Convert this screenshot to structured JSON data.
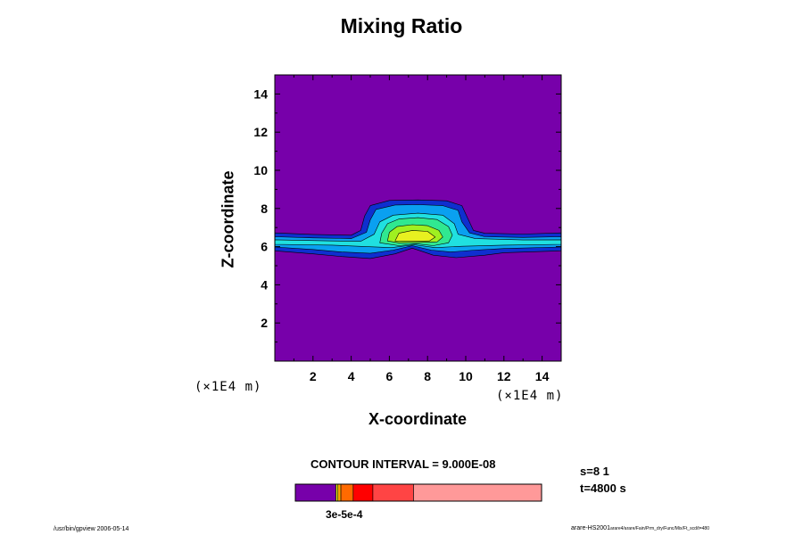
{
  "chart_data": {
    "type": "contour",
    "title": "Mixing Ratio",
    "xlabel": "X-coordinate",
    "ylabel": "Z-coordinate",
    "x_unit": "(×1E4 m)",
    "y_unit": "(×1E4 m)",
    "xlim": [
      0,
      15
    ],
    "ylim": [
      0,
      15
    ],
    "x_ticks": [
      2,
      4,
      6,
      8,
      10,
      12,
      14
    ],
    "y_ticks": [
      2,
      4,
      6,
      8,
      10,
      12,
      14
    ],
    "x_tick_labels": [
      "2",
      "4",
      "6",
      "8",
      "10",
      "12",
      "14"
    ],
    "y_tick_labels": [
      "2",
      "4",
      "6",
      "8",
      "10",
      "12",
      "14"
    ],
    "contour_interval": "CONTOUR INTERVAL = 9.000E-08",
    "background_color": "#7700aa",
    "levels": [
      {
        "color": "#0f2fcf",
        "regions": [
          [
            [
              0,
              6.72
            ],
            [
              2,
              6.64
            ],
            [
              4,
              6.6
            ],
            [
              4.5,
              6.85
            ],
            [
              4.7,
              7.6
            ],
            [
              5.0,
              8.15
            ],
            [
              6,
              8.42
            ],
            [
              7.5,
              8.45
            ],
            [
              9,
              8.4
            ],
            [
              9.8,
              8.15
            ],
            [
              10.1,
              7.5
            ],
            [
              10.4,
              6.85
            ],
            [
              11,
              6.7
            ],
            [
              13,
              6.66
            ],
            [
              15,
              6.72
            ],
            [
              15,
              5.78
            ],
            [
              12,
              5.68
            ],
            [
              11,
              5.55
            ],
            [
              9.5,
              5.42
            ],
            [
              8.3,
              5.55
            ],
            [
              7.2,
              5.92
            ],
            [
              6.3,
              5.62
            ],
            [
              5,
              5.38
            ],
            [
              3.5,
              5.48
            ],
            [
              2,
              5.62
            ],
            [
              0,
              5.78
            ]
          ]
        ]
      },
      {
        "color": "#0aa0f0",
        "regions": [
          [
            [
              0,
              6.52
            ],
            [
              2,
              6.46
            ],
            [
              4,
              6.42
            ],
            [
              4.8,
              6.75
            ],
            [
              5.0,
              7.4
            ],
            [
              5.3,
              7.95
            ],
            [
              6.3,
              8.18
            ],
            [
              7.5,
              8.2
            ],
            [
              8.8,
              8.15
            ],
            [
              9.6,
              7.9
            ],
            [
              9.8,
              7.3
            ],
            [
              10.2,
              6.72
            ],
            [
              11,
              6.52
            ],
            [
              13,
              6.48
            ],
            [
              15,
              6.52
            ],
            [
              15,
              5.98
            ],
            [
              12,
              5.9
            ],
            [
              10.5,
              5.82
            ],
            [
              9.2,
              5.72
            ],
            [
              8.2,
              5.82
            ],
            [
              7.2,
              6.05
            ],
            [
              6.2,
              5.82
            ],
            [
              5,
              5.65
            ],
            [
              3.5,
              5.72
            ],
            [
              2,
              5.85
            ],
            [
              0,
              5.98
            ]
          ]
        ]
      },
      {
        "color": "#20e0e0",
        "regions": [
          [
            [
              0,
              6.36
            ],
            [
              3,
              6.3
            ],
            [
              4.5,
              6.28
            ],
            [
              5.2,
              6.65
            ],
            [
              5.5,
              7.3
            ],
            [
              6.2,
              7.65
            ],
            [
              7.5,
              7.75
            ],
            [
              8.8,
              7.65
            ],
            [
              9.4,
              7.2
            ],
            [
              9.6,
              6.65
            ],
            [
              10.5,
              6.42
            ],
            [
              13,
              6.35
            ],
            [
              15,
              6.36
            ],
            [
              15,
              6.12
            ],
            [
              12,
              6.08
            ],
            [
              9.8,
              6.02
            ],
            [
              8.4,
              5.95
            ],
            [
              7.3,
              6.1
            ],
            [
              6.1,
              5.95
            ],
            [
              4.8,
              6.0
            ],
            [
              3,
              6.08
            ],
            [
              0,
              6.12
            ]
          ]
        ]
      },
      {
        "color": "#30e890",
        "regions": [
          [
            [
              5.5,
              6.2
            ],
            [
              5.6,
              6.7
            ],
            [
              5.9,
              7.2
            ],
            [
              6.5,
              7.45
            ],
            [
              7.5,
              7.52
            ],
            [
              8.5,
              7.42
            ],
            [
              9.1,
              7.05
            ],
            [
              9.3,
              6.6
            ],
            [
              9.1,
              6.2
            ],
            [
              8.3,
              6.05
            ],
            [
              7.4,
              6.15
            ],
            [
              6.5,
              6.05
            ]
          ]
        ]
      },
      {
        "color": "#a0f020",
        "regions": [
          [
            [
              5.9,
              6.3
            ],
            [
              6.0,
              6.75
            ],
            [
              6.4,
              7.05
            ],
            [
              7.2,
              7.15
            ],
            [
              8.0,
              7.1
            ],
            [
              8.6,
              6.85
            ],
            [
              8.8,
              6.5
            ],
            [
              8.5,
              6.25
            ],
            [
              7.5,
              6.22
            ],
            [
              6.5,
              6.2
            ]
          ]
        ]
      },
      {
        "color": "#e8f020",
        "regions": [
          [
            [
              6.3,
              6.3
            ],
            [
              6.5,
              6.7
            ],
            [
              7.2,
              6.85
            ],
            [
              8.0,
              6.8
            ],
            [
              8.4,
              6.5
            ],
            [
              8.1,
              6.3
            ],
            [
              7.2,
              6.28
            ]
          ]
        ]
      }
    ],
    "colorbar": {
      "segments": [
        {
          "fraction": 0.165,
          "color": "#7700aa"
        },
        {
          "fraction": 0.008,
          "color": "#e8f020"
        },
        {
          "fraction": 0.012,
          "color": "#ffa500"
        },
        {
          "fraction": 0.05,
          "color": "#ff6a00"
        },
        {
          "fraction": 0.08,
          "color": "#ff0000"
        },
        {
          "fraction": 0.165,
          "color": "#ff4444"
        },
        {
          "fraction": 0.52,
          "color": "#ff9999"
        }
      ],
      "label": "3e-5e-4"
    },
    "info": {
      "s": "s=8 1",
      "t": "t=4800 s"
    }
  },
  "footer": {
    "left": "/usr/bin/gpview 2006-05-14",
    "right_main": "arare-HS2001",
    "right_small": "arare4/arare/Fain/Prm_dry/Func/Mix/Ft_scd/t=480"
  }
}
